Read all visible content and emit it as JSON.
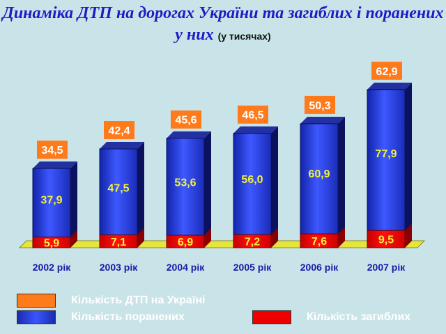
{
  "title": {
    "main": "Динаміка ДТП на дорогах України та загиблих і поранених у них",
    "unit": "(у тисячах)"
  },
  "colors": {
    "background": "#c9e4e8",
    "accidents": "#ff7a1a",
    "injured": "#2a3fe0",
    "deaths": "#ee0000",
    "title": "#1c1cc4",
    "value_text": "#f2f23a",
    "tick_text": "#1a1aa8"
  },
  "chart_data": {
    "type": "bar",
    "categories": [
      "2002 рік",
      "2003 рік",
      "2004 рік",
      "2005 рік",
      "2006 рік",
      "2007 рік"
    ],
    "series": [
      {
        "name": "Кількість ДТП на Україні",
        "values": [
          "34,5",
          "42,4",
          "45,6",
          "46,5",
          "50,3",
          "62,9"
        ]
      },
      {
        "name": "Кількість поранених",
        "values": [
          "37,9",
          "47,5",
          "53,6",
          "56,0",
          "60,9",
          "77,9"
        ]
      },
      {
        "name": "Кількість загиблих",
        "values": [
          "5,9",
          "7,1",
          "6,9",
          "7,2",
          "7,6",
          "9,5"
        ]
      }
    ],
    "stacked": true,
    "grid": false,
    "legend_position": "bottom"
  }
}
